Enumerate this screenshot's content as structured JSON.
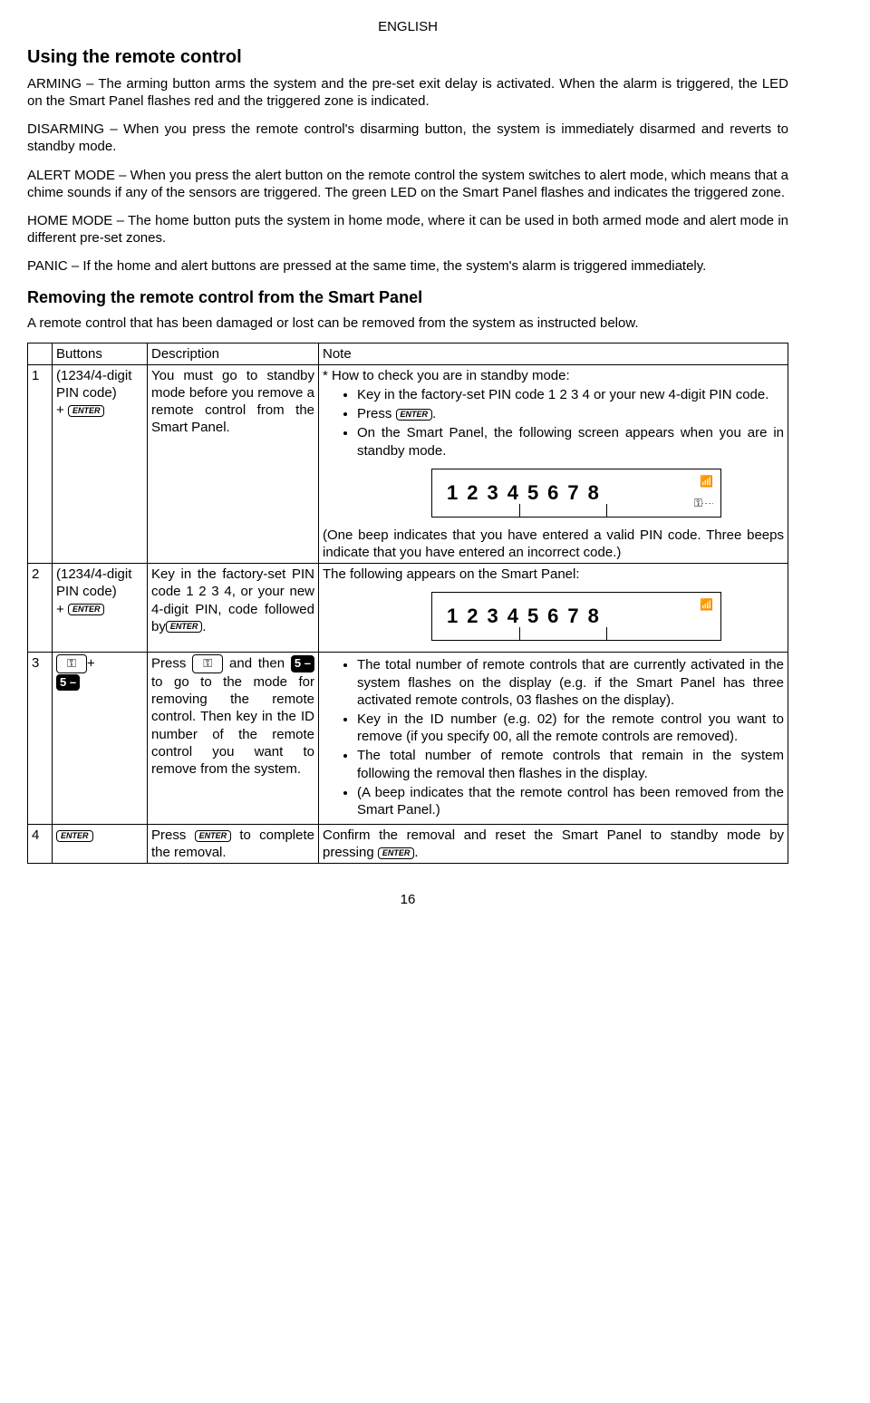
{
  "header": {
    "lang": "ENGLISH"
  },
  "section1": {
    "title": "Using the remote control",
    "p1": "ARMING – The arming button arms the system and the pre-set exit delay is activated. When the alarm is triggered, the LED on the Smart Panel flashes red and the triggered zone is indicated.",
    "p2": "DISARMING – When you press the remote control's disarming button, the system is immediately disarmed and reverts to standby mode.",
    "p3": "ALERT MODE – When you press the alert button on the remote control the system switches to alert mode, which means that a chime sounds if any of the sensors are triggered. The green LED on the Smart Panel flashes and indicates the triggered zone.",
    "p4": "HOME MODE – The home button puts the system in home mode, where it can be used in both armed mode and alert mode in different pre-set zones.",
    "p5": "PANIC – If the home and alert buttons are pressed at the same time, the system's alarm is triggered immediately."
  },
  "section2": {
    "title": "Removing the remote control from the Smart Panel",
    "intro": "A remote control that has been damaged or lost can be removed from the system as instructed below."
  },
  "table": {
    "h1": "Buttons",
    "h2": "Description",
    "h3": "Note",
    "row1": {
      "num": "1",
      "btns": "(1234/4-digit PIN code)",
      "plus": "+ ",
      "enter": "ENTER",
      "desc": "You must go to standby mode before you remove a remote control from the Smart Panel.",
      "note_lead": "* How to check you are in standby mode:",
      "b1": "Key in the factory-set PIN code 1 2 3 4 or your new 4-digit PIN code.",
      "b2a": "Press ",
      "b2b": ".",
      "b3": "On the Smart Panel, the following screen appears when you are in standby mode.",
      "lcd": "12345678",
      "after1": "(One beep indicates that you have entered a valid PIN code. Three beeps indicate that you have entered an incorrect code.)"
    },
    "row2": {
      "num": "2",
      "btns": "(1234/4-digit PIN code)",
      "plus": "+ ",
      "enter": "ENTER",
      "desc1": "Key in the factory-set PIN code 1 2 3 4, or your new 4-digit PIN, code followed by",
      "desc2": ".",
      "note1": "The following appears on the Smart Panel:",
      "lcd": "12345678"
    },
    "row3": {
      "num": "3",
      "plus": "+",
      "five": "5 –",
      "d1": "Press ",
      "d2": " and then ",
      "d3": "to go to the mode for removing the remote control. Then key in the ID number of the remote control you want to remove from the system.",
      "b1": "The total number of remote controls that are currently activated in the system flashes on the display (e.g. if the Smart Panel has three activated remote controls, 03 flashes on the display).",
      "b2": "Key in the ID number (e.g. 02) for the remote control you want to remove (if you specify 00, all the remote controls are removed).",
      "b3": "The total number of remote controls that remain in the system following the removal then flashes in the display.",
      "b4": "(A beep indicates that the remote control has been removed from the Smart Panel.)"
    },
    "row4": {
      "num": "4",
      "enter": "ENTER",
      "d1": "Press ",
      "d2": " to complete the removal.",
      "n1": "Confirm the removal and reset the Smart Panel to standby mode by pressing ",
      "n2": "."
    }
  },
  "pagenum": "16",
  "labels": {
    "enter": "ENTER"
  }
}
